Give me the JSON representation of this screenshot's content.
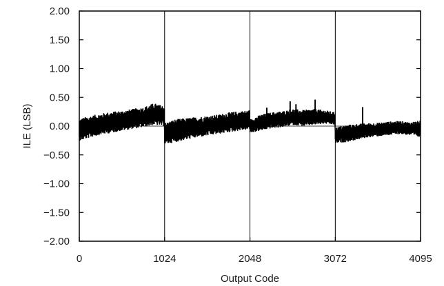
{
  "chart_data": {
    "type": "line",
    "title": "",
    "xlabel": "Output Code",
    "ylabel": "ILE (LSB)",
    "xlim": [
      0,
      4095
    ],
    "ylim": [
      -2.0,
      2.0
    ],
    "x_ticks": [
      0,
      1024,
      2048,
      3072,
      4095
    ],
    "x_tick_labels": [
      "0",
      "1024",
      "2048",
      "3072",
      "4095"
    ],
    "y_ticks": [
      2.0,
      1.5,
      1.0,
      0.5,
      0.0,
      -0.5,
      -1.0,
      -1.5,
      -2.0
    ],
    "y_tick_labels": [
      "2.00",
      "1.50",
      "1.00",
      "0.50",
      "0.00",
      "−0.50",
      "−1.00",
      "−1.50",
      "−2.00"
    ],
    "grid": {
      "x": true,
      "y": false
    },
    "line_color": "#000000",
    "series": [
      {
        "x": [
          0,
          128,
          256,
          384,
          512,
          640,
          768,
          896,
          1023,
          1024,
          1152,
          1280,
          1408,
          1536,
          1664,
          1792,
          1920,
          2047,
          2048,
          2176,
          2304,
          2432,
          2560,
          2688,
          2816,
          2944,
          3071,
          3072,
          3200,
          3328,
          3456,
          3584,
          3712,
          3840,
          3968,
          4095
        ],
        "envelope_high": [
          0.13,
          0.18,
          0.22,
          0.25,
          0.27,
          0.3,
          0.33,
          0.4,
          0.35,
          0.06,
          0.12,
          0.14,
          0.16,
          0.18,
          0.2,
          0.24,
          0.26,
          0.28,
          0.12,
          0.2,
          0.24,
          0.26,
          0.3,
          0.28,
          0.3,
          0.28,
          0.24,
          -0.02,
          0.02,
          0.04,
          0.05,
          0.06,
          0.08,
          0.09,
          0.07,
          0.1
        ],
        "envelope_low": [
          -0.26,
          -0.2,
          -0.15,
          -0.12,
          -0.08,
          -0.05,
          -0.02,
          0.02,
          0.0,
          -0.32,
          -0.28,
          -0.24,
          -0.2,
          -0.17,
          -0.14,
          -0.11,
          -0.08,
          -0.06,
          -0.12,
          -0.08,
          -0.04,
          -0.02,
          0.02,
          0.0,
          0.02,
          0.04,
          0.02,
          -0.3,
          -0.28,
          -0.24,
          -0.2,
          -0.18,
          -0.16,
          -0.14,
          -0.16,
          -0.2
        ],
        "mean": [
          -0.08,
          -0.03,
          0.02,
          0.05,
          0.08,
          0.11,
          0.14,
          0.2,
          0.16,
          -0.16,
          -0.09,
          -0.06,
          -0.03,
          0.0,
          0.03,
          0.06,
          0.09,
          0.11,
          -0.01,
          0.05,
          0.09,
          0.11,
          0.15,
          0.13,
          0.15,
          0.15,
          0.12,
          -0.16,
          -0.13,
          -0.1,
          -0.08,
          -0.06,
          -0.04,
          -0.02,
          -0.05,
          -0.04
        ],
        "spikes": [
          {
            "x": 2250,
            "y": 0.32
          },
          {
            "x": 2530,
            "y": 0.43
          },
          {
            "x": 2600,
            "y": 0.38
          },
          {
            "x": 2830,
            "y": 0.46
          },
          {
            "x": 3400,
            "y": 0.33
          }
        ]
      }
    ]
  }
}
